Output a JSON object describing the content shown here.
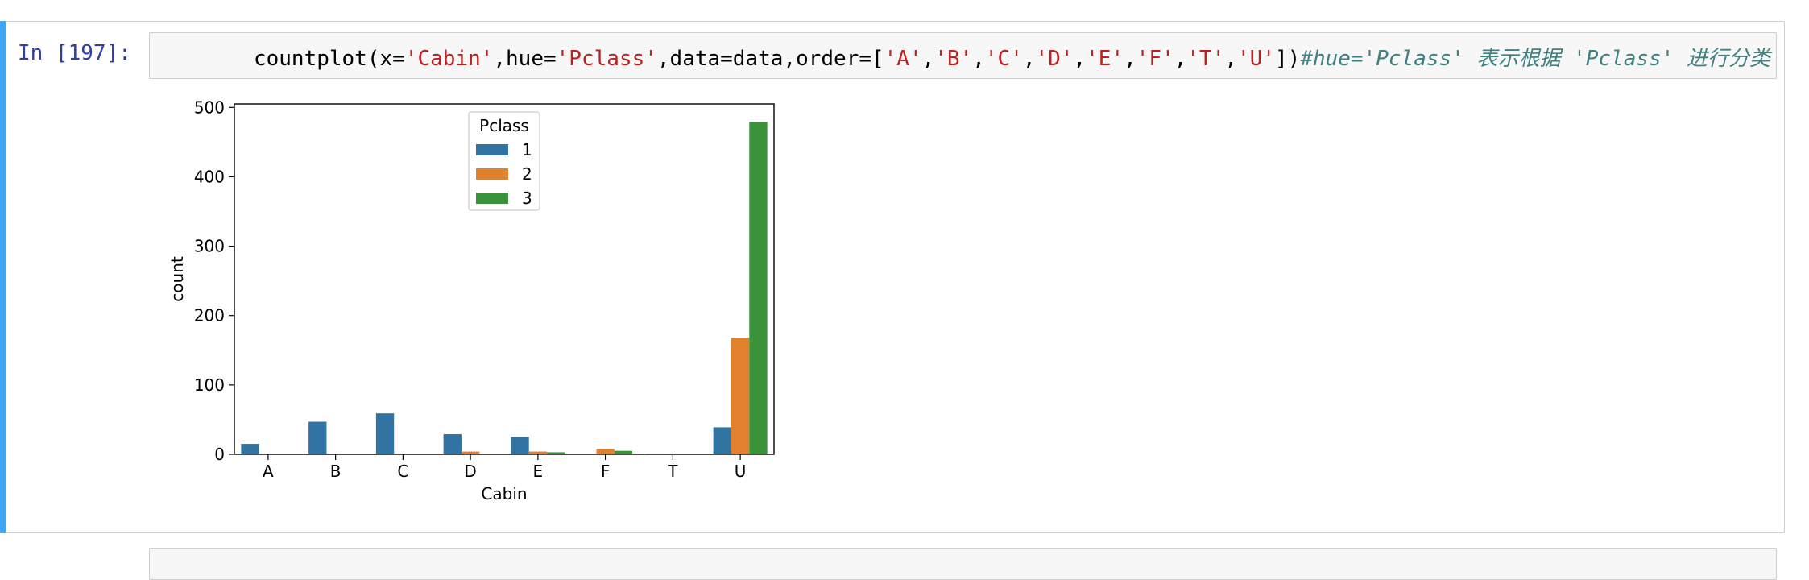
{
  "cell": {
    "prompt": "In [197]:",
    "code_tokens": [
      {
        "text": "countplot(x=",
        "kind": "plain"
      },
      {
        "text": "'Cabin'",
        "kind": "str"
      },
      {
        "text": ",hue=",
        "kind": "plain"
      },
      {
        "text": "'Pclass'",
        "kind": "str"
      },
      {
        "text": ",data=data,order=[",
        "kind": "plain"
      },
      {
        "text": "'A'",
        "kind": "str"
      },
      {
        "text": ",",
        "kind": "plain"
      },
      {
        "text": "'B'",
        "kind": "str"
      },
      {
        "text": ",",
        "kind": "plain"
      },
      {
        "text": "'C'",
        "kind": "str"
      },
      {
        "text": ",",
        "kind": "plain"
      },
      {
        "text": "'D'",
        "kind": "str"
      },
      {
        "text": ",",
        "kind": "plain"
      },
      {
        "text": "'E'",
        "kind": "str"
      },
      {
        "text": ",",
        "kind": "plain"
      },
      {
        "text": "'F'",
        "kind": "str"
      },
      {
        "text": ",",
        "kind": "plain"
      },
      {
        "text": "'T'",
        "kind": "str"
      },
      {
        "text": ",",
        "kind": "plain"
      },
      {
        "text": "'U'",
        "kind": "str"
      },
      {
        "text": "])",
        "kind": "plain"
      },
      {
        "text": "#hue='Pclass' 表示根据 'Pclass' 进行分类",
        "kind": "comment"
      }
    ]
  },
  "chart_data": {
    "type": "bar",
    "categories": [
      "A",
      "B",
      "C",
      "D",
      "E",
      "F",
      "T",
      "U"
    ],
    "series": [
      {
        "name": "1",
        "color": "#3274a1",
        "values": [
          15,
          47,
          59,
          29,
          25,
          0,
          1,
          39
        ]
      },
      {
        "name": "2",
        "color": "#e1812c",
        "values": [
          0,
          0,
          0,
          4,
          4,
          8,
          0,
          168
        ]
      },
      {
        "name": "3",
        "color": "#3a923a",
        "values": [
          0,
          0,
          0,
          0,
          3,
          5,
          0,
          479
        ]
      }
    ],
    "xlabel": "Cabin",
    "ylabel": "count",
    "ylim": [
      0,
      505
    ],
    "yticks": [
      0,
      100,
      200,
      300,
      400,
      500
    ],
    "legend_title": "Pclass",
    "legend_position": "upper-center",
    "grid": false
  },
  "colors": {
    "cell_bar": "#42a5f5",
    "prompt": "#303f9f",
    "string": "#ba2121",
    "comment": "#408080"
  }
}
